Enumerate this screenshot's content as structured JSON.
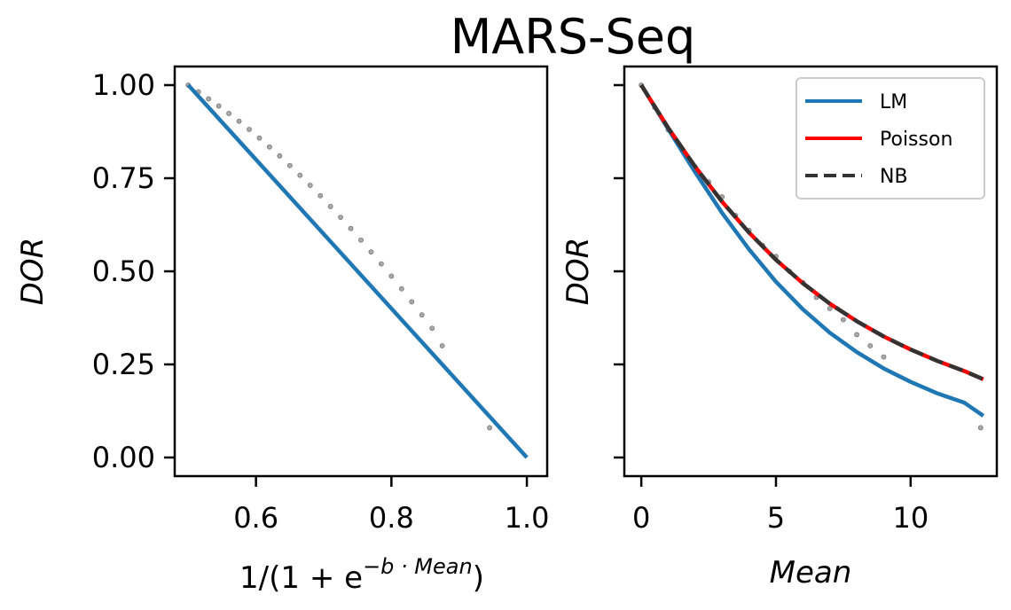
{
  "figure": {
    "title": "MARS-Seq"
  },
  "colors": {
    "lm": "#1f77b4",
    "poisson": "#ff0000",
    "nb": "#333333",
    "observed": "#999999"
  },
  "chart_data": [
    {
      "type": "scatter",
      "panel": "left",
      "title": "",
      "xlabel_main": "1/(1 + e",
      "xlabel_sup": "−b · Mean",
      "xlabel_end": ")",
      "ylabel": "DOR",
      "xlim": [
        0.48,
        1.03
      ],
      "ylim": [
        -0.05,
        1.05
      ],
      "xticks": [
        0.6,
        0.8,
        1.0
      ],
      "xtick_labels": [
        "0.6",
        "0.8",
        "1.0"
      ],
      "yticks": [
        0.0,
        0.25,
        0.5,
        0.75,
        1.0
      ],
      "ytick_labels": [
        "0.00",
        "0.25",
        "0.50",
        "0.75",
        "1.00"
      ],
      "grid": false,
      "series": [
        {
          "kind": "points",
          "color": "#999999",
          "x": [
            0.5,
            0.515,
            0.53,
            0.545,
            0.56,
            0.575,
            0.59,
            0.605,
            0.62,
            0.635,
            0.65,
            0.665,
            0.68,
            0.695,
            0.71,
            0.725,
            0.74,
            0.755,
            0.77,
            0.785,
            0.8,
            0.815,
            0.83,
            0.845,
            0.86,
            0.875,
            0.945
          ],
          "y": [
            1.0,
            0.982,
            0.963,
            0.944,
            0.924,
            0.903,
            0.881,
            0.858,
            0.834,
            0.81,
            0.784,
            0.758,
            0.731,
            0.703,
            0.674,
            0.645,
            0.615,
            0.584,
            0.552,
            0.52,
            0.487,
            0.453,
            0.418,
            0.383,
            0.347,
            0.3,
            0.08
          ]
        },
        {
          "kind": "line",
          "name": "LM",
          "color": "#1f77b4",
          "x": [
            0.5,
            1.0
          ],
          "y": [
            1.0,
            0.0
          ]
        }
      ]
    },
    {
      "type": "line",
      "panel": "right",
      "title": "",
      "xlabel": "Mean",
      "ylabel": "DOR",
      "xlim": [
        -0.63,
        13.2
      ],
      "ylim": [
        -0.05,
        1.05
      ],
      "xticks": [
        0,
        5,
        10
      ],
      "xtick_labels": [
        "0",
        "5",
        "10"
      ],
      "yticks": [
        0.0,
        0.25,
        0.5,
        0.75,
        1.0
      ],
      "ytick_labels": [],
      "grid": false,
      "legend_position": "top-right",
      "series": [
        {
          "kind": "points",
          "color": "#999999",
          "x": [
            0,
            0.5,
            1.0,
            1.5,
            2.0,
            2.5,
            3.0,
            3.5,
            4.0,
            4.5,
            5.0,
            5.5,
            6.0,
            6.5,
            7.0,
            7.5,
            8.0,
            8.5,
            9.0,
            12.6
          ],
          "y": [
            1.0,
            0.94,
            0.88,
            0.83,
            0.78,
            0.74,
            0.7,
            0.65,
            0.61,
            0.57,
            0.54,
            0.5,
            0.47,
            0.43,
            0.4,
            0.37,
            0.33,
            0.3,
            0.27,
            0.08
          ]
        },
        {
          "kind": "line",
          "name": "LM",
          "color": "#1f77b4",
          "x": [
            0,
            1,
            2,
            3,
            4,
            5,
            6,
            7,
            8,
            9,
            10,
            11,
            12,
            12.7
          ],
          "y": [
            1.0,
            0.882,
            0.766,
            0.657,
            0.559,
            0.472,
            0.398,
            0.335,
            0.283,
            0.239,
            0.203,
            0.172,
            0.147,
            0.112
          ]
        },
        {
          "kind": "line",
          "name": "Poisson",
          "color": "#ff0000",
          "x": [
            0,
            1,
            2,
            3,
            4,
            5,
            6,
            7,
            8,
            9,
            10,
            11,
            12,
            12.7
          ],
          "y": [
            1.0,
            0.885,
            0.781,
            0.687,
            0.604,
            0.531,
            0.468,
            0.413,
            0.366,
            0.325,
            0.29,
            0.259,
            0.232,
            0.21
          ]
        },
        {
          "kind": "dashed-line",
          "name": "NB",
          "color": "#333333",
          "x": [
            0,
            1,
            2,
            3,
            4,
            5,
            6,
            7,
            8,
            9,
            10,
            11,
            12,
            12.7
          ],
          "y": [
            1.0,
            0.885,
            0.781,
            0.687,
            0.604,
            0.531,
            0.468,
            0.413,
            0.366,
            0.325,
            0.29,
            0.259,
            0.232,
            0.21
          ]
        }
      ],
      "legend": [
        {
          "label": "LM",
          "color": "#1f77b4",
          "style": "solid"
        },
        {
          "label": "Poisson",
          "color": "#ff0000",
          "style": "solid"
        },
        {
          "label": "NB",
          "color": "#333333",
          "style": "dashed"
        }
      ]
    }
  ]
}
